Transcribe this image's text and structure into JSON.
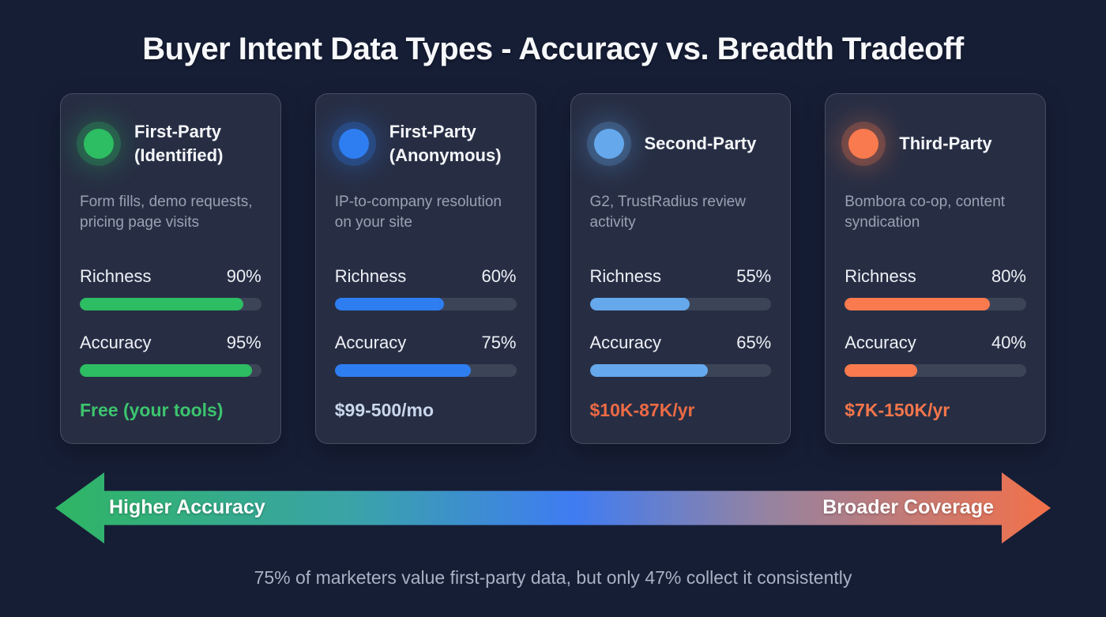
{
  "title": "Buyer Intent Data Types - Accuracy vs. Breadth Tradeoff",
  "cards": [
    {
      "name": "First-Party (Identified)",
      "description": "Form fills, demo requests, pricing page visits",
      "accent": "#2dbd62",
      "metrics": [
        {
          "label": "Richness",
          "value": 90,
          "display": "90%"
        },
        {
          "label": "Accuracy",
          "value": 95,
          "display": "95%"
        }
      ],
      "price": "Free (your tools)",
      "price_color": "#3cc46e"
    },
    {
      "name": "First-Party (Anonymous)",
      "description": "IP-to-company resolution on your site",
      "accent": "#2e7ef2",
      "metrics": [
        {
          "label": "Richness",
          "value": 60,
          "display": "60%"
        },
        {
          "label": "Accuracy",
          "value": 75,
          "display": "75%"
        }
      ],
      "price": "$99-500/mo",
      "price_color": "#c9d6ec"
    },
    {
      "name": "Second-Party",
      "description": "G2, TrustRadius review activity",
      "accent": "#65a8ec",
      "metrics": [
        {
          "label": "Richness",
          "value": 55,
          "display": "55%"
        },
        {
          "label": "Accuracy",
          "value": 65,
          "display": "65%"
        }
      ],
      "price": "$10K-87K/yr",
      "price_color": "#ec6a45"
    },
    {
      "name": "Third-Party",
      "description": "Bombora co-op, content syndication",
      "accent": "#f97a4e",
      "metrics": [
        {
          "label": "Richness",
          "value": 80,
          "display": "80%"
        },
        {
          "label": "Accuracy",
          "value": 40,
          "display": "40%"
        }
      ],
      "price": "$7K-150K/yr",
      "price_color": "#f4764b"
    }
  ],
  "axis": {
    "left_label": "Higher Accuracy",
    "right_label": "Broader Coverage",
    "gradient": [
      "#2fb564",
      "#3aa3a8",
      "#3f7cf2",
      "#97839f",
      "#f3714a"
    ]
  },
  "footnote": "75% of marketers value first-party data, but only 47% collect it consistently",
  "colors": {
    "background": "#161e36",
    "card_background": "#272e44",
    "bar_track": "#3c4457",
    "description_text": "#99a1b4",
    "footnote_text": "#a9b1c4"
  },
  "chart_data": {
    "type": "bar",
    "title": "Buyer Intent Data Types - Accuracy vs. Breadth Tradeoff",
    "categories": [
      "First-Party (Identified)",
      "First-Party (Anonymous)",
      "Second-Party",
      "Third-Party"
    ],
    "series": [
      {
        "name": "Richness",
        "values": [
          90,
          60,
          55,
          80
        ]
      },
      {
        "name": "Accuracy",
        "values": [
          95,
          75,
          65,
          40
        ]
      }
    ],
    "category_descriptions": [
      "Form fills, demo requests, pricing page visits",
      "IP-to-company resolution on your site",
      "G2, TrustRadius review activity",
      "Bombora co-op, content syndication"
    ],
    "category_prices": [
      "Free (your tools)",
      "$99-500/mo",
      "$10K-87K/yr",
      "$7K-150K/yr"
    ],
    "axis_spectrum": {
      "left": "Higher Accuracy",
      "right": "Broader Coverage"
    },
    "annotation": "75% of marketers value first-party data, but only 47% collect it consistently",
    "ylim": [
      0,
      100
    ],
    "unit": "%"
  }
}
